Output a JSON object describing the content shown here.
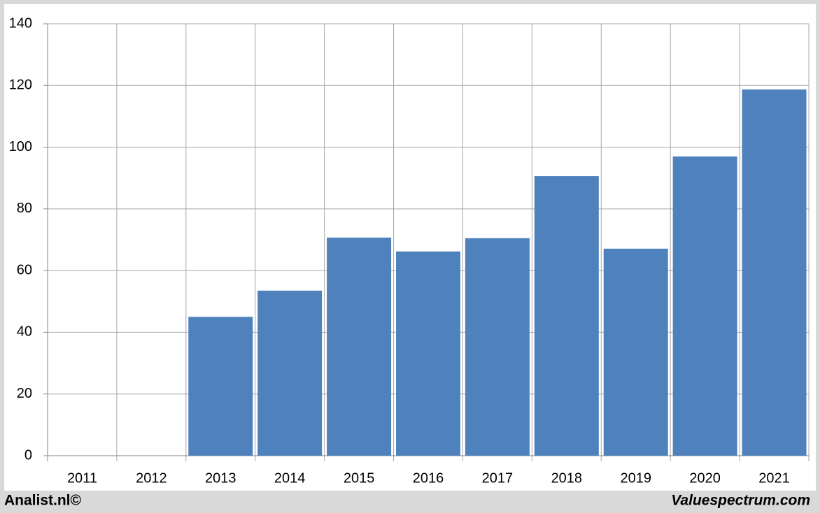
{
  "chart_data": {
    "type": "bar",
    "categories": [
      "2011",
      "2012",
      "2013",
      "2014",
      "2015",
      "2016",
      "2017",
      "2018",
      "2019",
      "2020",
      "2021"
    ],
    "values": [
      null,
      null,
      45,
      53.5,
      70.7,
      66.2,
      70.5,
      90.6,
      67.1,
      97,
      118.7
    ],
    "color": "#4f81bd",
    "ylim": [
      0,
      140
    ],
    "yticks": [
      0,
      20,
      40,
      60,
      80,
      100,
      120,
      140
    ],
    "grid": true
  },
  "footer": {
    "left": "Analist.nl©",
    "right": "Valuespectrum.com"
  }
}
